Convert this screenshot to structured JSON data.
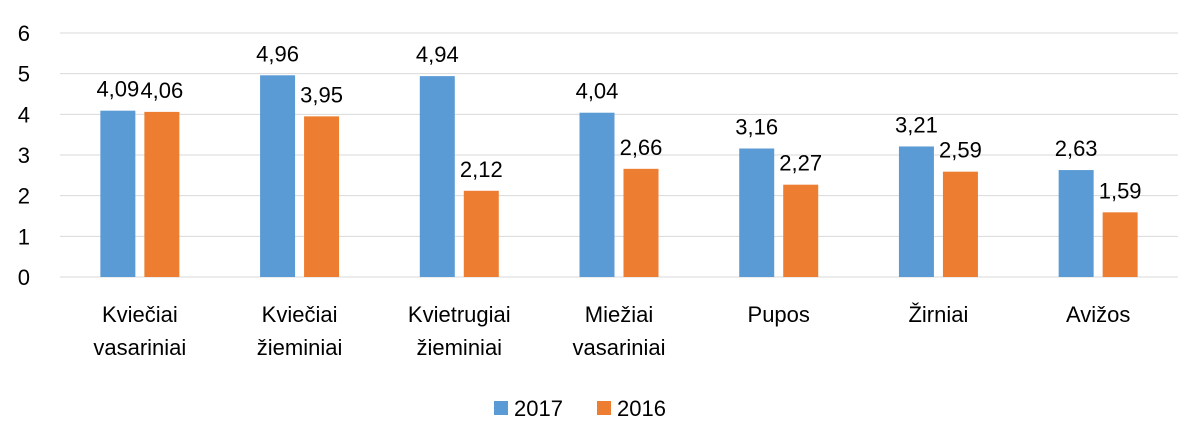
{
  "chart_data": {
    "type": "bar",
    "categories": [
      [
        "Kviečiai",
        "vasariniai"
      ],
      [
        "Kviečiai",
        "žieminiai"
      ],
      [
        "Kvietrugiai",
        "žieminiai"
      ],
      [
        "Miežiai",
        "vasariniai"
      ],
      [
        "Pupos"
      ],
      [
        "Žirniai"
      ],
      [
        "Avižos"
      ]
    ],
    "series": [
      {
        "name": "2017",
        "color": "#5b9bd5",
        "values": [
          4.09,
          4.96,
          4.94,
          4.04,
          3.16,
          3.21,
          2.63
        ],
        "labels": [
          "4,09",
          "4,96",
          "4,94",
          "4,04",
          "3,16",
          "3,21",
          "2,63"
        ]
      },
      {
        "name": "2016",
        "color": "#ed7d31",
        "values": [
          4.06,
          3.95,
          2.12,
          2.66,
          2.27,
          2.59,
          1.59
        ],
        "labels": [
          "4,06",
          "3,95",
          "2,12",
          "2,66",
          "2,27",
          "2,59",
          "1,59"
        ]
      }
    ],
    "yticks": [
      0,
      1,
      2,
      3,
      4,
      5,
      6
    ],
    "ylim": [
      0,
      6
    ],
    "grid": true,
    "legend_position": "bottom",
    "title": "",
    "xlabel": "",
    "ylabel": ""
  }
}
